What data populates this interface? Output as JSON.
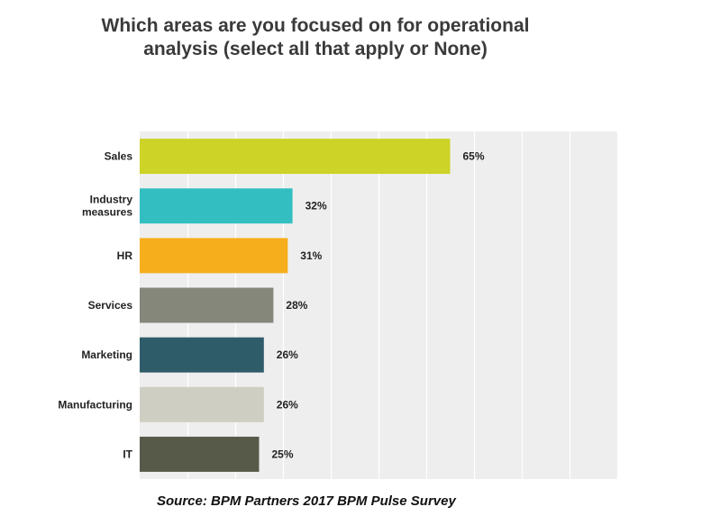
{
  "chart_data": {
    "type": "bar",
    "orientation": "horizontal",
    "title": "Which areas are you focused on for operational analysis (select all that apply or None)",
    "categories": [
      "Sales",
      "Industry measures",
      "HR",
      "Services",
      "Marketing",
      "Manufacturing",
      "IT"
    ],
    "category_lines": [
      [
        "Sales"
      ],
      [
        "Industry",
        "measures"
      ],
      [
        "HR"
      ],
      [
        "Services"
      ],
      [
        "Marketing"
      ],
      [
        "Manufacturing"
      ],
      [
        "IT"
      ]
    ],
    "values": [
      65,
      32,
      31,
      28,
      26,
      26,
      25
    ],
    "value_labels": [
      "65%",
      "32%",
      "31%",
      "28%",
      "26%",
      "26%",
      "25%"
    ],
    "colors": [
      "#cdd327",
      "#33bfc1",
      "#f6ae1c",
      "#85877a",
      "#2f5c69",
      "#cfcec2",
      "#575a48"
    ],
    "xlim": [
      0,
      100
    ],
    "grid": true,
    "plot_background": "#eeeeee",
    "legend": "none"
  },
  "source": "Source: BPM Partners 2017 BPM Pulse Survey"
}
